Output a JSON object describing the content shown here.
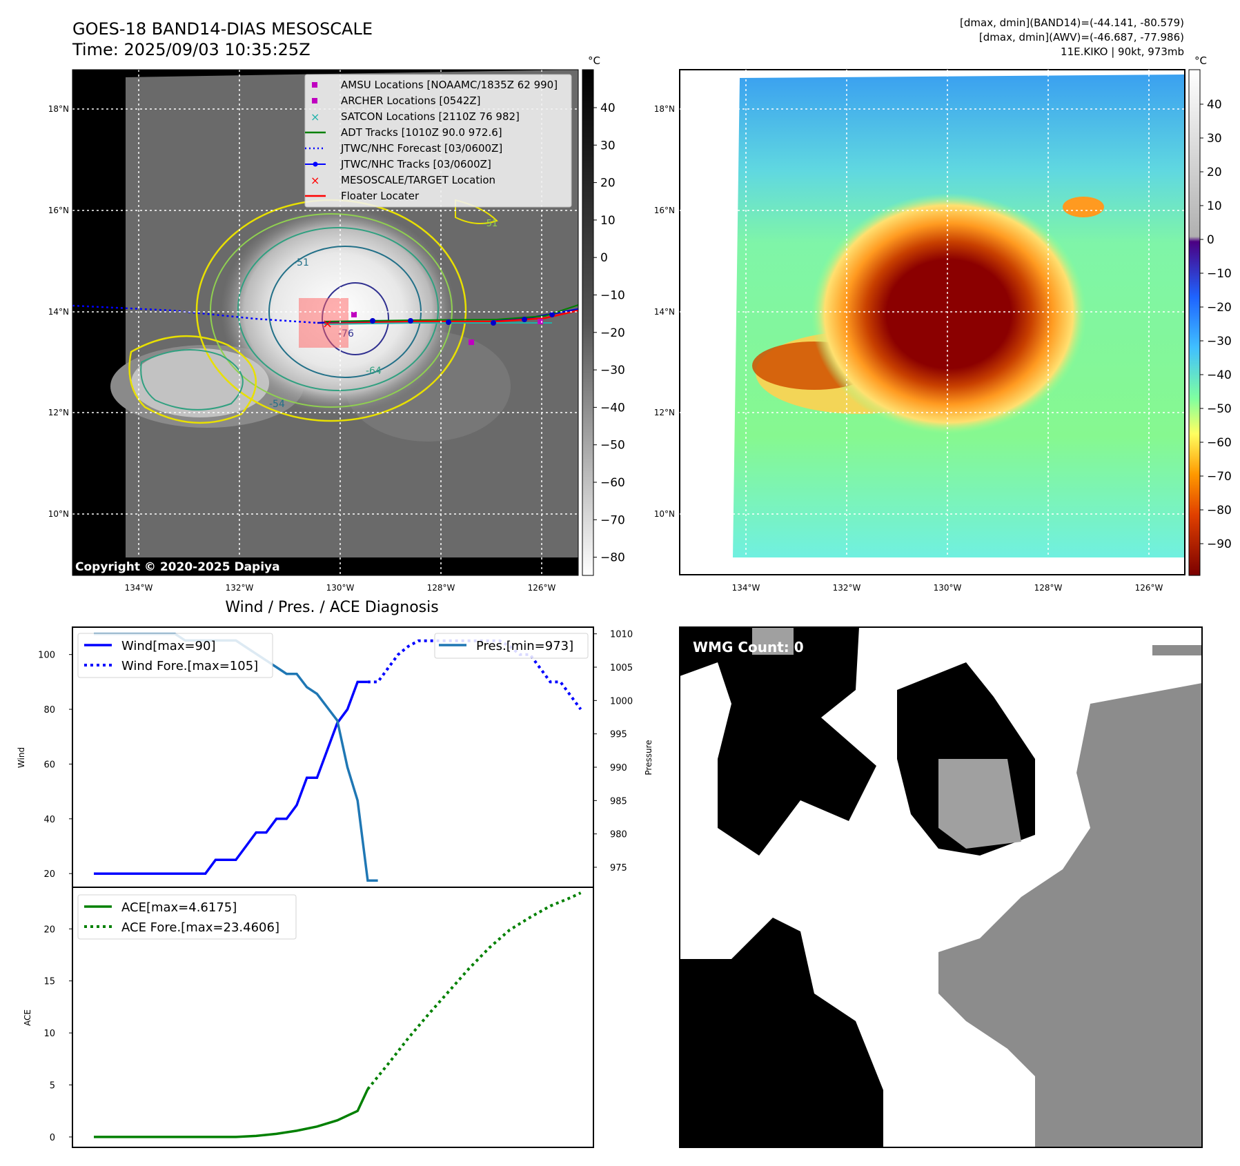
{
  "header": {
    "title": "GOES-18 BAND14-DIAS MESOSCALE",
    "time": "Time: 2025/09/03 10:35:25Z",
    "stats_line1": "[dmax, dmin](BAND14)=(-44.141, -80.579)",
    "stats_line2": "[dmax, dmin](AWV)=(-46.687, -77.986)",
    "storm_line": "11E.KIKO | 90kt, 973mb"
  },
  "copyright": "Copyright © 2020-2025 Dapiya",
  "maps": {
    "lat_labels": [
      "18°N",
      "16°N",
      "14°N",
      "12°N",
      "10°N"
    ],
    "lon_labels": [
      "134°W",
      "132°W",
      "130°W",
      "128°W",
      "126°W"
    ],
    "colorbar_unit": "°C",
    "ir_colorbar_ticks": [
      "40",
      "30",
      "20",
      "10",
      "0",
      "−10",
      "−20",
      "−30",
      "−40",
      "−50",
      "−60",
      "−70",
      "−80"
    ],
    "enh_colorbar_ticks": [
      "40",
      "30",
      "20",
      "10",
      "0",
      "−10",
      "−20",
      "−30",
      "−40",
      "−50",
      "−60",
      "−70",
      "−80",
      "−90"
    ],
    "contour_labels": [
      "-51",
      "-64",
      "-76",
      "-64",
      "-54",
      "-51"
    ],
    "legend": [
      {
        "label": "AMSU Locations [NOAAMC/1835Z 62 990]",
        "symbol": "square",
        "color": "#c000c0"
      },
      {
        "label": "ARCHER Locations [0542Z]",
        "symbol": "square",
        "color": "#c000c0"
      },
      {
        "label": "SATCON Locations [2110Z 76 982]",
        "symbol": "x",
        "color": "#20b2aa"
      },
      {
        "label": "ADT Tracks [1010Z 90.0 972.6]",
        "symbol": "line",
        "color": "#008000"
      },
      {
        "label": "JTWC/NHC Forecast [03/0600Z]",
        "symbol": "dotted",
        "color": "#0000ff"
      },
      {
        "label": "JTWC/NHC Tracks [03/0600Z]",
        "symbol": "line-dot",
        "color": "#0000ff"
      },
      {
        "label": "MESOSCALE/TARGET Location",
        "symbol": "x",
        "color": "#ff0000"
      },
      {
        "label": "Floater Locater",
        "symbol": "line",
        "color": "#ff0000"
      }
    ]
  },
  "diagnosis": {
    "title": "Wind / Pres. / ACE Diagnosis",
    "wind_ylabel": "Wind",
    "pres_ylabel": "Pressure",
    "ace_ylabel": "ACE",
    "wind_ticks": [
      "100",
      "80",
      "60",
      "40",
      "20"
    ],
    "pres_ticks": [
      "1010",
      "1005",
      "1000",
      "995",
      "990",
      "985",
      "980",
      "975"
    ],
    "ace_ticks": [
      "20",
      "15",
      "10",
      "5",
      "0"
    ],
    "legend_wind": "Wind[max=90]",
    "legend_wind_fore": "Wind Fore.[max=105]",
    "legend_pres": "Pres.[min=973]",
    "legend_ace": "ACE[max=4.6175]",
    "legend_ace_fore": "ACE Fore.[max=23.4606]"
  },
  "wmg": {
    "label": "WMG Count: 0"
  },
  "chart_data": [
    {
      "type": "line",
      "x": [
        0,
        1,
        2,
        3,
        4,
        5,
        6,
        7,
        8,
        9,
        10,
        11,
        12,
        13,
        14,
        15,
        16,
        17,
        18,
        19,
        20,
        21,
        22,
        23,
        24,
        25,
        26,
        27,
        28
      ],
      "series": [
        {
          "name": "Wind[max=90]",
          "values": [
            20,
            20,
            20,
            20,
            20,
            20,
            20,
            20,
            20,
            20,
            20,
            20,
            25,
            25,
            25,
            30,
            35,
            35,
            40,
            40,
            45,
            55,
            55,
            65,
            75,
            80,
            90,
            90,
            null
          ]
        },
        {
          "name": "Pres.[min=973]",
          "values": [
            1010,
            1010,
            1010,
            1010,
            1010,
            1010,
            1010,
            1010,
            1010,
            1009,
            1009,
            1009,
            1009,
            1009,
            1009,
            1008,
            1007,
            1006,
            1005,
            1004,
            1004,
            1002,
            1001,
            999,
            997,
            990,
            985,
            973,
            973
          ]
        }
      ],
      "forecast": {
        "name": "Wind Fore.[max=105]",
        "x": [
          27,
          28,
          29,
          30,
          31,
          32,
          33,
          34,
          35,
          36,
          37,
          38,
          39,
          40,
          41,
          42,
          43,
          44,
          45,
          46,
          47,
          48
        ],
        "values": [
          90,
          90,
          95,
          100,
          103,
          105,
          105,
          105,
          105,
          105,
          105,
          105,
          105,
          105,
          103,
          100,
          100,
          95,
          90,
          90,
          85,
          80
        ]
      },
      "wind_ylim": [
        15,
        110
      ],
      "pres_ylim": [
        972,
        1011
      ]
    },
    {
      "type": "line",
      "x": [
        0,
        2,
        4,
        6,
        8,
        10,
        12,
        14,
        16,
        18,
        20,
        22,
        24,
        26,
        27
      ],
      "series": [
        {
          "name": "ACE[max=4.6175]",
          "values": [
            0,
            0,
            0,
            0,
            0,
            0,
            0,
            0,
            0.1,
            0.3,
            0.6,
            1.0,
            1.6,
            2.5,
            4.6
          ]
        }
      ],
      "forecast": {
        "name": "ACE Fore.[max=23.4606]",
        "x": [
          27,
          29,
          31,
          33,
          35,
          37,
          39,
          41,
          43,
          45,
          47,
          48
        ],
        "values": [
          4.6,
          7.0,
          9.5,
          11.8,
          14.0,
          16.2,
          18.2,
          19.9,
          21.1,
          22.2,
          23.0,
          23.46
        ]
      },
      "ylim": [
        -1,
        24
      ]
    }
  ]
}
